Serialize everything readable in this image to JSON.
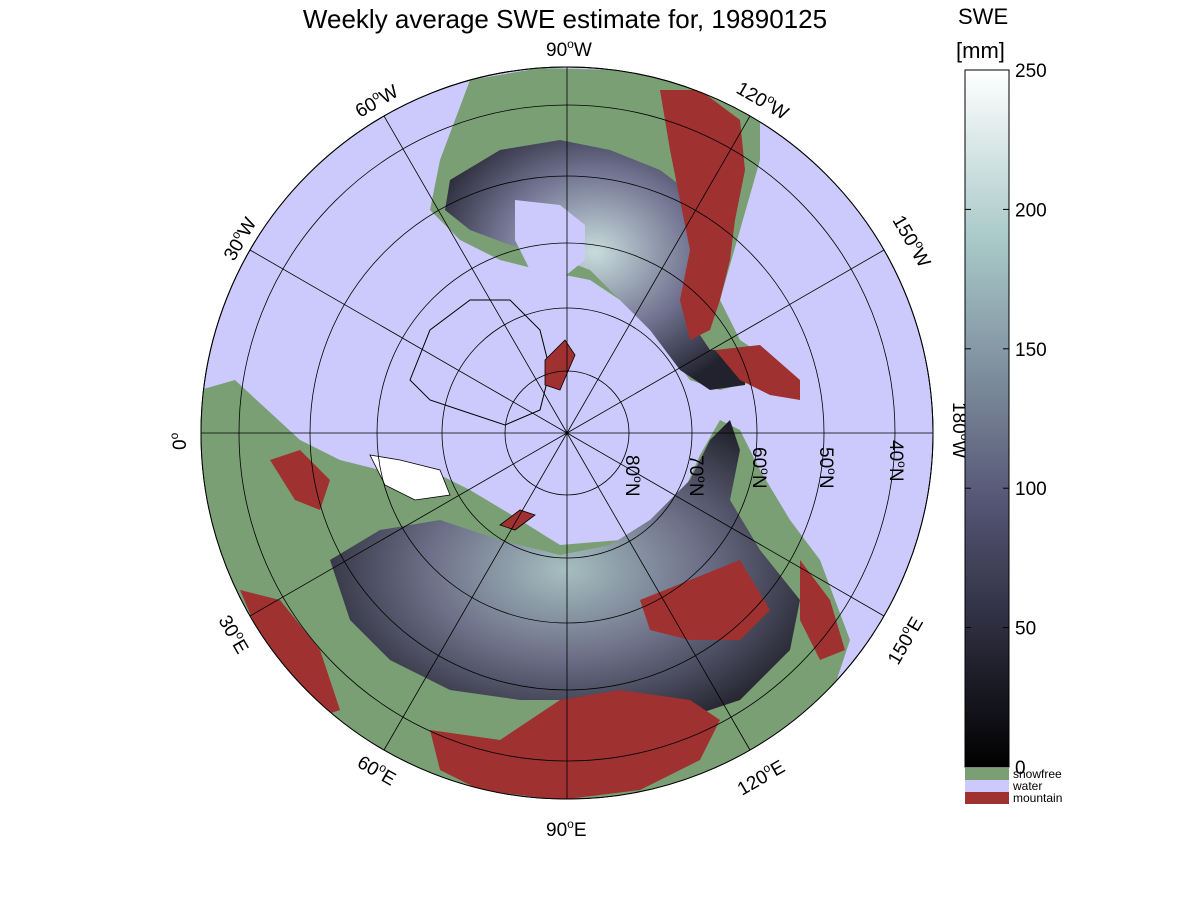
{
  "title": "Weekly average SWE estimate for, 19890125",
  "colorbar": {
    "title_line1": "SWE",
    "title_line2": "[mm]",
    "ticks": [
      "0",
      "50",
      "100",
      "150",
      "200",
      "250"
    ],
    "tick_values": [
      0,
      50,
      100,
      150,
      200,
      250
    ],
    "range": [
      0,
      250
    ],
    "colormap": "bone (black to white)",
    "legend": [
      {
        "label": "snowfree",
        "color": "#7a9f74"
      },
      {
        "label": "water",
        "color": "#cccafc"
      },
      {
        "label": "mountain",
        "color": "#9f3131"
      }
    ]
  },
  "map": {
    "projection": "north polar stereographic",
    "ocean_color": "#cccafc",
    "land_snowfree_color": "#7a9f74",
    "mountain_color": "#9f3131",
    "longitude_labels": [
      {
        "deg": "90",
        "hem": "W"
      },
      {
        "deg": "60",
        "hem": "W"
      },
      {
        "deg": "30",
        "hem": "W"
      },
      {
        "deg": "0",
        "hem": ""
      },
      {
        "deg": "120",
        "hem": "W"
      },
      {
        "deg": "150",
        "hem": "W"
      },
      {
        "deg": "180",
        "hem": "W"
      },
      {
        "deg": "30",
        "hem": "E"
      },
      {
        "deg": "60",
        "hem": "E"
      },
      {
        "deg": "90",
        "hem": "E"
      },
      {
        "deg": "120",
        "hem": "E"
      },
      {
        "deg": "150",
        "hem": "E"
      }
    ],
    "latitude_labels": [
      {
        "deg": "80",
        "hem": "N"
      },
      {
        "deg": "70",
        "hem": "N"
      },
      {
        "deg": "60",
        "hem": "N"
      },
      {
        "deg": "50",
        "hem": "N"
      },
      {
        "deg": "40",
        "hem": "N"
      }
    ]
  }
}
